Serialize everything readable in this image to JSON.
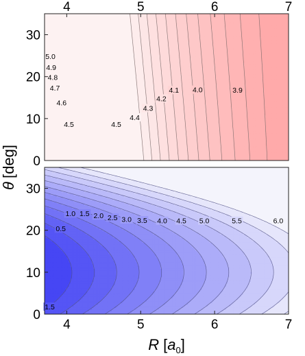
{
  "chart_data": [
    {
      "type": "contour",
      "panel": "top",
      "xlim": [
        3.7,
        7.0
      ],
      "ylim": [
        0,
        35
      ],
      "x_ticks": [
        "4",
        "5",
        "6",
        "7"
      ],
      "x_tick_values": [
        4,
        5,
        6,
        7
      ],
      "x_ticks_position": "top",
      "y_ticks": [
        "0",
        "10",
        "20",
        "30"
      ],
      "y_tick_values": [
        0,
        10,
        20,
        30
      ],
      "colormap": "white-to-red",
      "colors": {
        "low": "#fdf2f2",
        "high": "#ffaaaa",
        "line": "#7a6a6a"
      },
      "contour_levels": [
        3.9,
        4.0,
        4.1,
        4.2,
        4.3,
        4.4,
        4.5,
        4.6,
        4.7,
        4.8,
        4.9,
        5.0
      ],
      "contour_labels": [
        {
          "text": "5.0",
          "x": 3.78,
          "y": 24.8
        },
        {
          "text": "4.9",
          "x": 3.79,
          "y": 22.2
        },
        {
          "text": "4.8",
          "x": 3.81,
          "y": 19.8
        },
        {
          "text": "4.7",
          "x": 3.84,
          "y": 17.3
        },
        {
          "text": "4.6",
          "x": 3.93,
          "y": 13.8
        },
        {
          "text": "4.5",
          "x": 4.03,
          "y": 8.6
        },
        {
          "text": "4.5",
          "x": 4.67,
          "y": 8.6
        },
        {
          "text": "4.4",
          "x": 4.92,
          "y": 10.3
        },
        {
          "text": "4.3",
          "x": 5.1,
          "y": 12.5
        },
        {
          "text": "4.2",
          "x": 5.28,
          "y": 14.8
        },
        {
          "text": "4.1",
          "x": 5.45,
          "y": 16.8
        },
        {
          "text": "4.0",
          "x": 5.77,
          "y": 16.9
        },
        {
          "text": "3.9",
          "x": 6.31,
          "y": 16.8
        }
      ]
    },
    {
      "type": "contour",
      "panel": "bottom",
      "xlim": [
        3.7,
        7.0
      ],
      "ylim": [
        0,
        35
      ],
      "x_ticks": [
        "4",
        "5",
        "6",
        "7"
      ],
      "x_tick_values": [
        4,
        5,
        6,
        7
      ],
      "y_ticks": [
        "0",
        "10",
        "20",
        "30"
      ],
      "y_tick_values": [
        0,
        10,
        20,
        30
      ],
      "colormap": "blue-to-white",
      "colors": {
        "low": "#4646f4",
        "high": "#f4f4fc",
        "line": "#55558a"
      },
      "contour_levels": [
        0.5,
        1.0,
        1.5,
        2.0,
        2.5,
        3.0,
        3.5,
        4.0,
        4.5,
        5.0,
        5.5,
        6.0
      ],
      "contour_labels": [
        {
          "text": "0.5",
          "x": 3.92,
          "y": 20.4
        },
        {
          "text": "1.0",
          "x": 4.05,
          "y": 24.0
        },
        {
          "text": "1.5",
          "x": 4.24,
          "y": 24.0
        },
        {
          "text": "2.0",
          "x": 4.43,
          "y": 23.5
        },
        {
          "text": "2.5",
          "x": 4.62,
          "y": 23.0
        },
        {
          "text": "3.0",
          "x": 4.81,
          "y": 22.6
        },
        {
          "text": "3.5",
          "x": 5.02,
          "y": 22.4
        },
        {
          "text": "4.0",
          "x": 5.29,
          "y": 22.3
        },
        {
          "text": "4.5",
          "x": 5.55,
          "y": 22.3
        },
        {
          "text": "5.0",
          "x": 5.86,
          "y": 22.3
        },
        {
          "text": "5.5",
          "x": 6.3,
          "y": 22.3
        },
        {
          "text": "6.0",
          "x": 6.86,
          "y": 22.3
        },
        {
          "text": "1.5",
          "x": 3.77,
          "y": 1.8
        }
      ]
    }
  ],
  "labels": {
    "ylabel_main": "θ",
    "ylabel_unit": "[deg]",
    "xlabel_main": "R",
    "xlabel_unit_prefix": "[",
    "xlabel_unit_a": "a",
    "xlabel_unit_sub": "0",
    "xlabel_unit_suffix": "]"
  }
}
